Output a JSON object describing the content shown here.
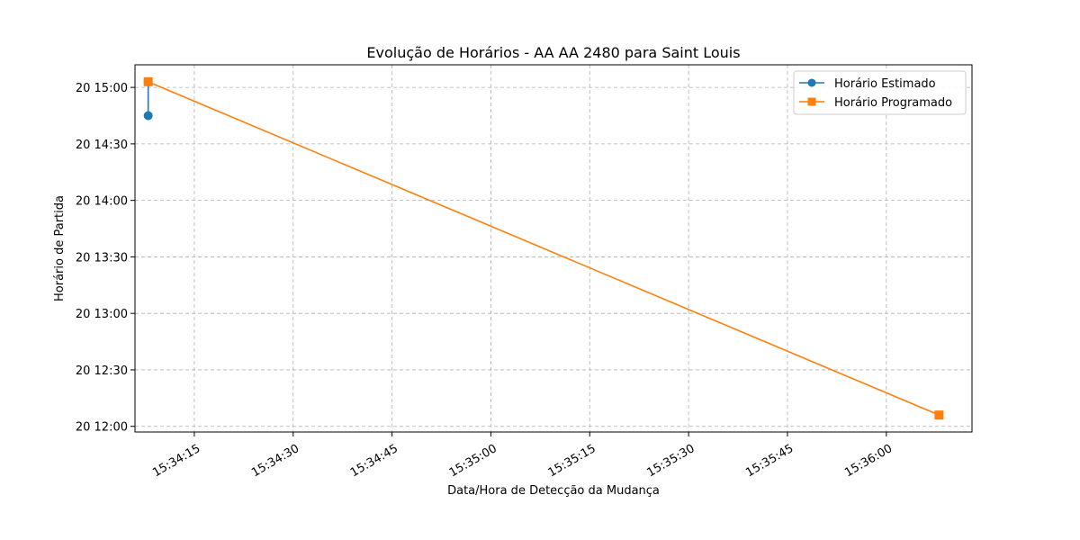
{
  "chart_data": {
    "type": "line",
    "title": "Evolução de Horários - AA AA 2480 para Saint Louis",
    "xlabel": "Data/Hora de Detecção da Mudança",
    "ylabel": "Horário de Partida",
    "x_tick_labels": [
      "15:34:15",
      "15:34:30",
      "15:34:45",
      "15:35:00",
      "15:35:15",
      "15:35:30",
      "15:35:45",
      "15:36:00"
    ],
    "y_tick_labels": [
      "20 12:00",
      "20 12:30",
      "20 13:00",
      "20 13:30",
      "20 14:00",
      "20 14:30",
      "20 15:00"
    ],
    "x_ticks": [
      "15:34:15",
      "15:34:30",
      "15:34:45",
      "15:35:00",
      "15:35:15",
      "15:35:30",
      "15:35:45",
      "15:36:00"
    ],
    "y_ticks": [
      "12:00",
      "12:30",
      "13:00",
      "13:30",
      "14:00",
      "14:30",
      "15:00"
    ],
    "xlim": [
      "15:34:06",
      "15:36:13"
    ],
    "ylim": [
      "11:57",
      "15:12"
    ],
    "grid": true,
    "legend_position": "top-right",
    "series": [
      {
        "name": "Horário Estimado",
        "color": "#1f77b4",
        "marker": "circle",
        "points": [
          {
            "x": "15:34:08",
            "y": "14:45"
          },
          {
            "x": "15:34:08",
            "y": "15:03"
          }
        ]
      },
      {
        "name": "Horário Programado",
        "color": "#ff7f0e",
        "marker": "square",
        "points": [
          {
            "x": "15:34:08",
            "y": "15:03"
          },
          {
            "x": "15:36:08",
            "y": "12:06"
          }
        ]
      }
    ]
  }
}
